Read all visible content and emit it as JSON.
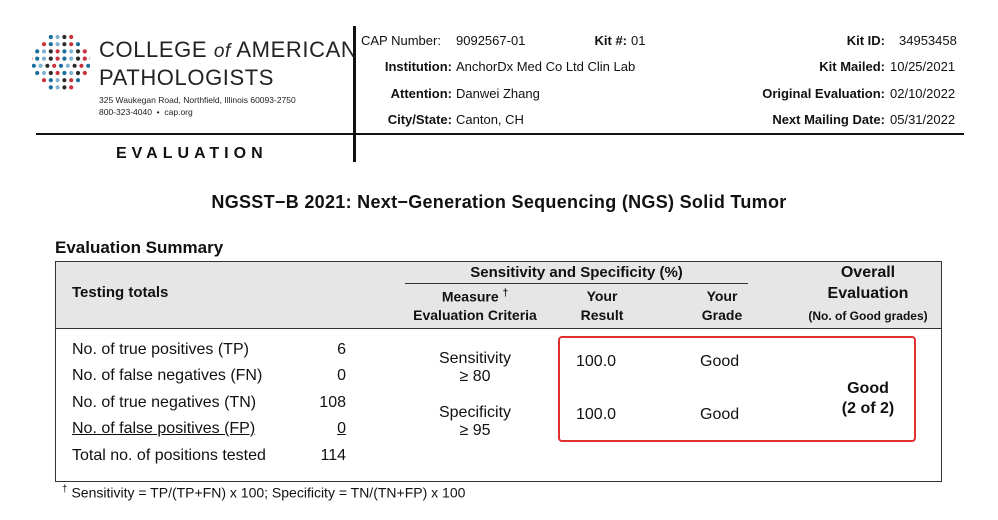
{
  "logo": {
    "org_line1_a": "COLLEGE",
    "org_line1_of": "of",
    "org_line1_b": "AMERICAN",
    "org_line2": "PATHOLOGISTS",
    "address": "325 Waukegan Road, Northfield, Illinois 60093-2750",
    "phone": "800-323-4040",
    "web": "cap.org",
    "dot_colors": [
      "#1a6e9e",
      "#c8323c",
      "#2a2a2a",
      "#7fb2d1"
    ]
  },
  "section_label": "EVALUATION",
  "header": {
    "cap_number_label": "CAP Number:",
    "cap_number": "9092567-01",
    "kit_num_label": "Kit #:",
    "kit_num": "01",
    "kit_id_label": "Kit ID:",
    "kit_id": "34953458",
    "institution_label": "Institution:",
    "institution": "AnchorDx Med Co Ltd Clin Lab",
    "kit_mailed_label": "Kit Mailed:",
    "kit_mailed": "10/25/2021",
    "attention_label": "Attention:",
    "attention": "Danwei Zhang",
    "orig_eval_label": "Original Evaluation:",
    "orig_eval": "02/10/2022",
    "city_label": "City/State:",
    "city": "Canton, CH",
    "next_mailing_label": "Next Mailing Date:",
    "next_mailing": "05/31/2022"
  },
  "doc_title": "NGSST−B 2021: Next−Generation Sequencing (NGS) Solid Tumor",
  "summary_title": "Evaluation Summary",
  "table": {
    "testing_totals": "Testing totals",
    "sens_spec_header": "Sensitivity and Specificity (%)",
    "measure_line1": "Measure",
    "measure_dagger": "†",
    "measure_line2": "Evaluation Criteria",
    "your_result_1": "Your",
    "your_result_2": "Result",
    "your_grade_1": "Your",
    "your_grade_2": "Grade",
    "overall_1": "Overall",
    "overall_2": "Evaluation",
    "overall_3": "(No. of Good grades)",
    "totals": [
      {
        "label": "No. of true positives (TP)",
        "value": "6"
      },
      {
        "label": "No. of false negatives (FN)",
        "value": "0"
      },
      {
        "label": "No. of true negatives (TN)",
        "value": "108"
      },
      {
        "label": "No. of false positives (FP)",
        "value": "0"
      }
    ],
    "total_positions_label": "Total no. of positions tested",
    "total_positions_value": "114",
    "metrics": [
      {
        "name": "Sensitivity",
        "criteria": "≥ 80",
        "result": "100.0",
        "grade": "Good"
      },
      {
        "name": "Specificity",
        "criteria": "≥ 95",
        "result": "100.0",
        "grade": "Good"
      }
    ],
    "overall_grade": "Good",
    "overall_count": "(2 of 2)"
  },
  "footnote_dagger": "†",
  "footnote": "Sensitivity = TP/(TP+FN) x 100; Specificity = TN/(TN+FP) x 100"
}
